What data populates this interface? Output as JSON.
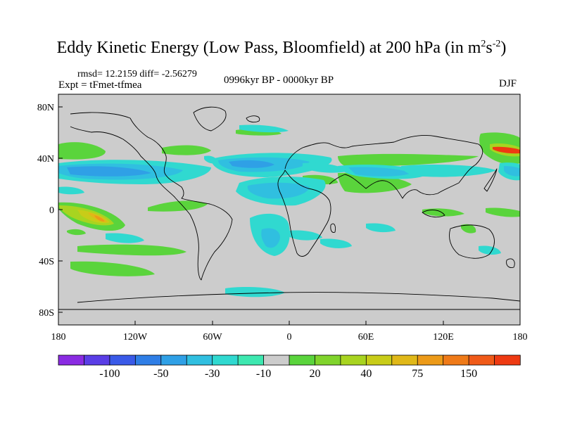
{
  "title": {
    "main": "Eddy Kinetic Energy (Low Pass, Bloomfield) at 200 hPa (in m",
    "sup1": "2",
    "mid": "s",
    "sup2": "-2",
    "end": ")"
  },
  "stats": "rmsd= 12.2159 diff= -2.56279",
  "experiment": "Expt = tFmet-tfmea",
  "period": "0996kyr BP - 0000kyr BP",
  "season": "DJF",
  "map": {
    "lat_ticks": [
      "80N",
      "40N",
      "0",
      "40S",
      "80S"
    ],
    "lon_ticks": [
      "180",
      "120W",
      "60W",
      "0",
      "60E",
      "120E",
      "180"
    ]
  },
  "colorbar": {
    "colors": [
      "#8a2be2",
      "#5a3ee6",
      "#3a5ae8",
      "#2f7ee6",
      "#2fa0e6",
      "#30bfe0",
      "#30d9d0",
      "#3de8b0",
      "#cccccc",
      "#5ad43c",
      "#80d42c",
      "#a8d420",
      "#c8cc18",
      "#e0b818",
      "#ec9a18",
      "#ef7a18",
      "#f05a18",
      "#ee3a12"
    ],
    "labels": [
      "-100",
      "-50",
      "-30",
      "-10",
      "20",
      "40",
      "75",
      "150"
    ]
  }
}
